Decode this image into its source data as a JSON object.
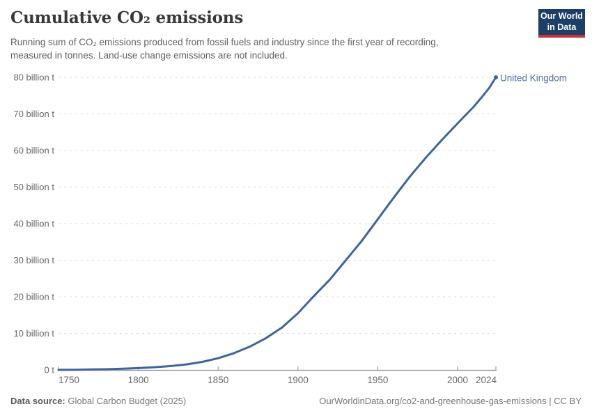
{
  "header": {
    "title": "Cumulative CO₂ emissions",
    "subtitle_line1": "Running sum of CO₂ emissions produced from fossil fuels and industry since the first year of recording,",
    "subtitle_line2": "measured in tonnes. Land-use change emissions are not included.",
    "logo": {
      "line1": "Our World",
      "line2": "in Data"
    }
  },
  "footer": {
    "source_label": "Data source:",
    "source_value": "Global Carbon Budget (2025)",
    "link_text": "OurWorldinData.org/co2-and-greenhouse-gas-emissions | CC BY"
  },
  "colors": {
    "line": "#40639e",
    "entity_label": "#4b6da6",
    "grid": "#dcdcdc",
    "axis": "#8d8d8d",
    "tick_text": "#676767",
    "logo_bg": "#1d3e66",
    "logo_red": "#cd303b",
    "title_text": "#383838",
    "subtitle_text": "#5f5f5f",
    "footer_text": "#757575"
  },
  "chart_data": {
    "type": "line",
    "title": "Cumulative CO₂ emissions",
    "entity": "United Kingdom",
    "unit": "tonnes",
    "xlabel": "",
    "ylabel": "",
    "xlim": [
      1750,
      2024
    ],
    "ylim": [
      0,
      80
    ],
    "grid": true,
    "legend_position": "end-of-line",
    "x": [
      1750,
      1760,
      1770,
      1780,
      1790,
      1800,
      1810,
      1820,
      1830,
      1840,
      1850,
      1860,
      1870,
      1880,
      1890,
      1900,
      1910,
      1920,
      1930,
      1940,
      1950,
      1960,
      1970,
      1980,
      1990,
      2000,
      2010,
      2015,
      2020,
      2024
    ],
    "series": [
      {
        "name": "United Kingdom",
        "values": [
          0.01,
          0.06,
          0.13,
          0.2,
          0.33,
          0.5,
          0.75,
          1.05,
          1.5,
          2.2,
          3.2,
          4.6,
          6.4,
          8.7,
          11.6,
          15.5,
          20.2,
          24.7,
          30.0,
          35.3,
          41.2,
          47.1,
          52.8,
          58.0,
          62.8,
          67.4,
          71.9,
          74.5,
          77.2,
          80.0
        ]
      }
    ],
    "y_ticks": [
      {
        "value": 0,
        "label": "0 t"
      },
      {
        "value": 10,
        "label": "10 billion t"
      },
      {
        "value": 20,
        "label": "20 billion t"
      },
      {
        "value": 30,
        "label": "30 billion t"
      },
      {
        "value": 40,
        "label": "40 billion t"
      },
      {
        "value": 50,
        "label": "50 billion t"
      },
      {
        "value": 60,
        "label": "60 billion t"
      },
      {
        "value": 70,
        "label": "70 billion t"
      },
      {
        "value": 80,
        "label": "80 billion t"
      }
    ],
    "x_ticks": [
      {
        "value": 1750,
        "label": "1750"
      },
      {
        "value": 1800,
        "label": "1800"
      },
      {
        "value": 1850,
        "label": "1850"
      },
      {
        "value": 1900,
        "label": "1900"
      },
      {
        "value": 1950,
        "label": "1950"
      },
      {
        "value": 2000,
        "label": "2000"
      },
      {
        "value": 2024,
        "label": "2024"
      }
    ]
  }
}
